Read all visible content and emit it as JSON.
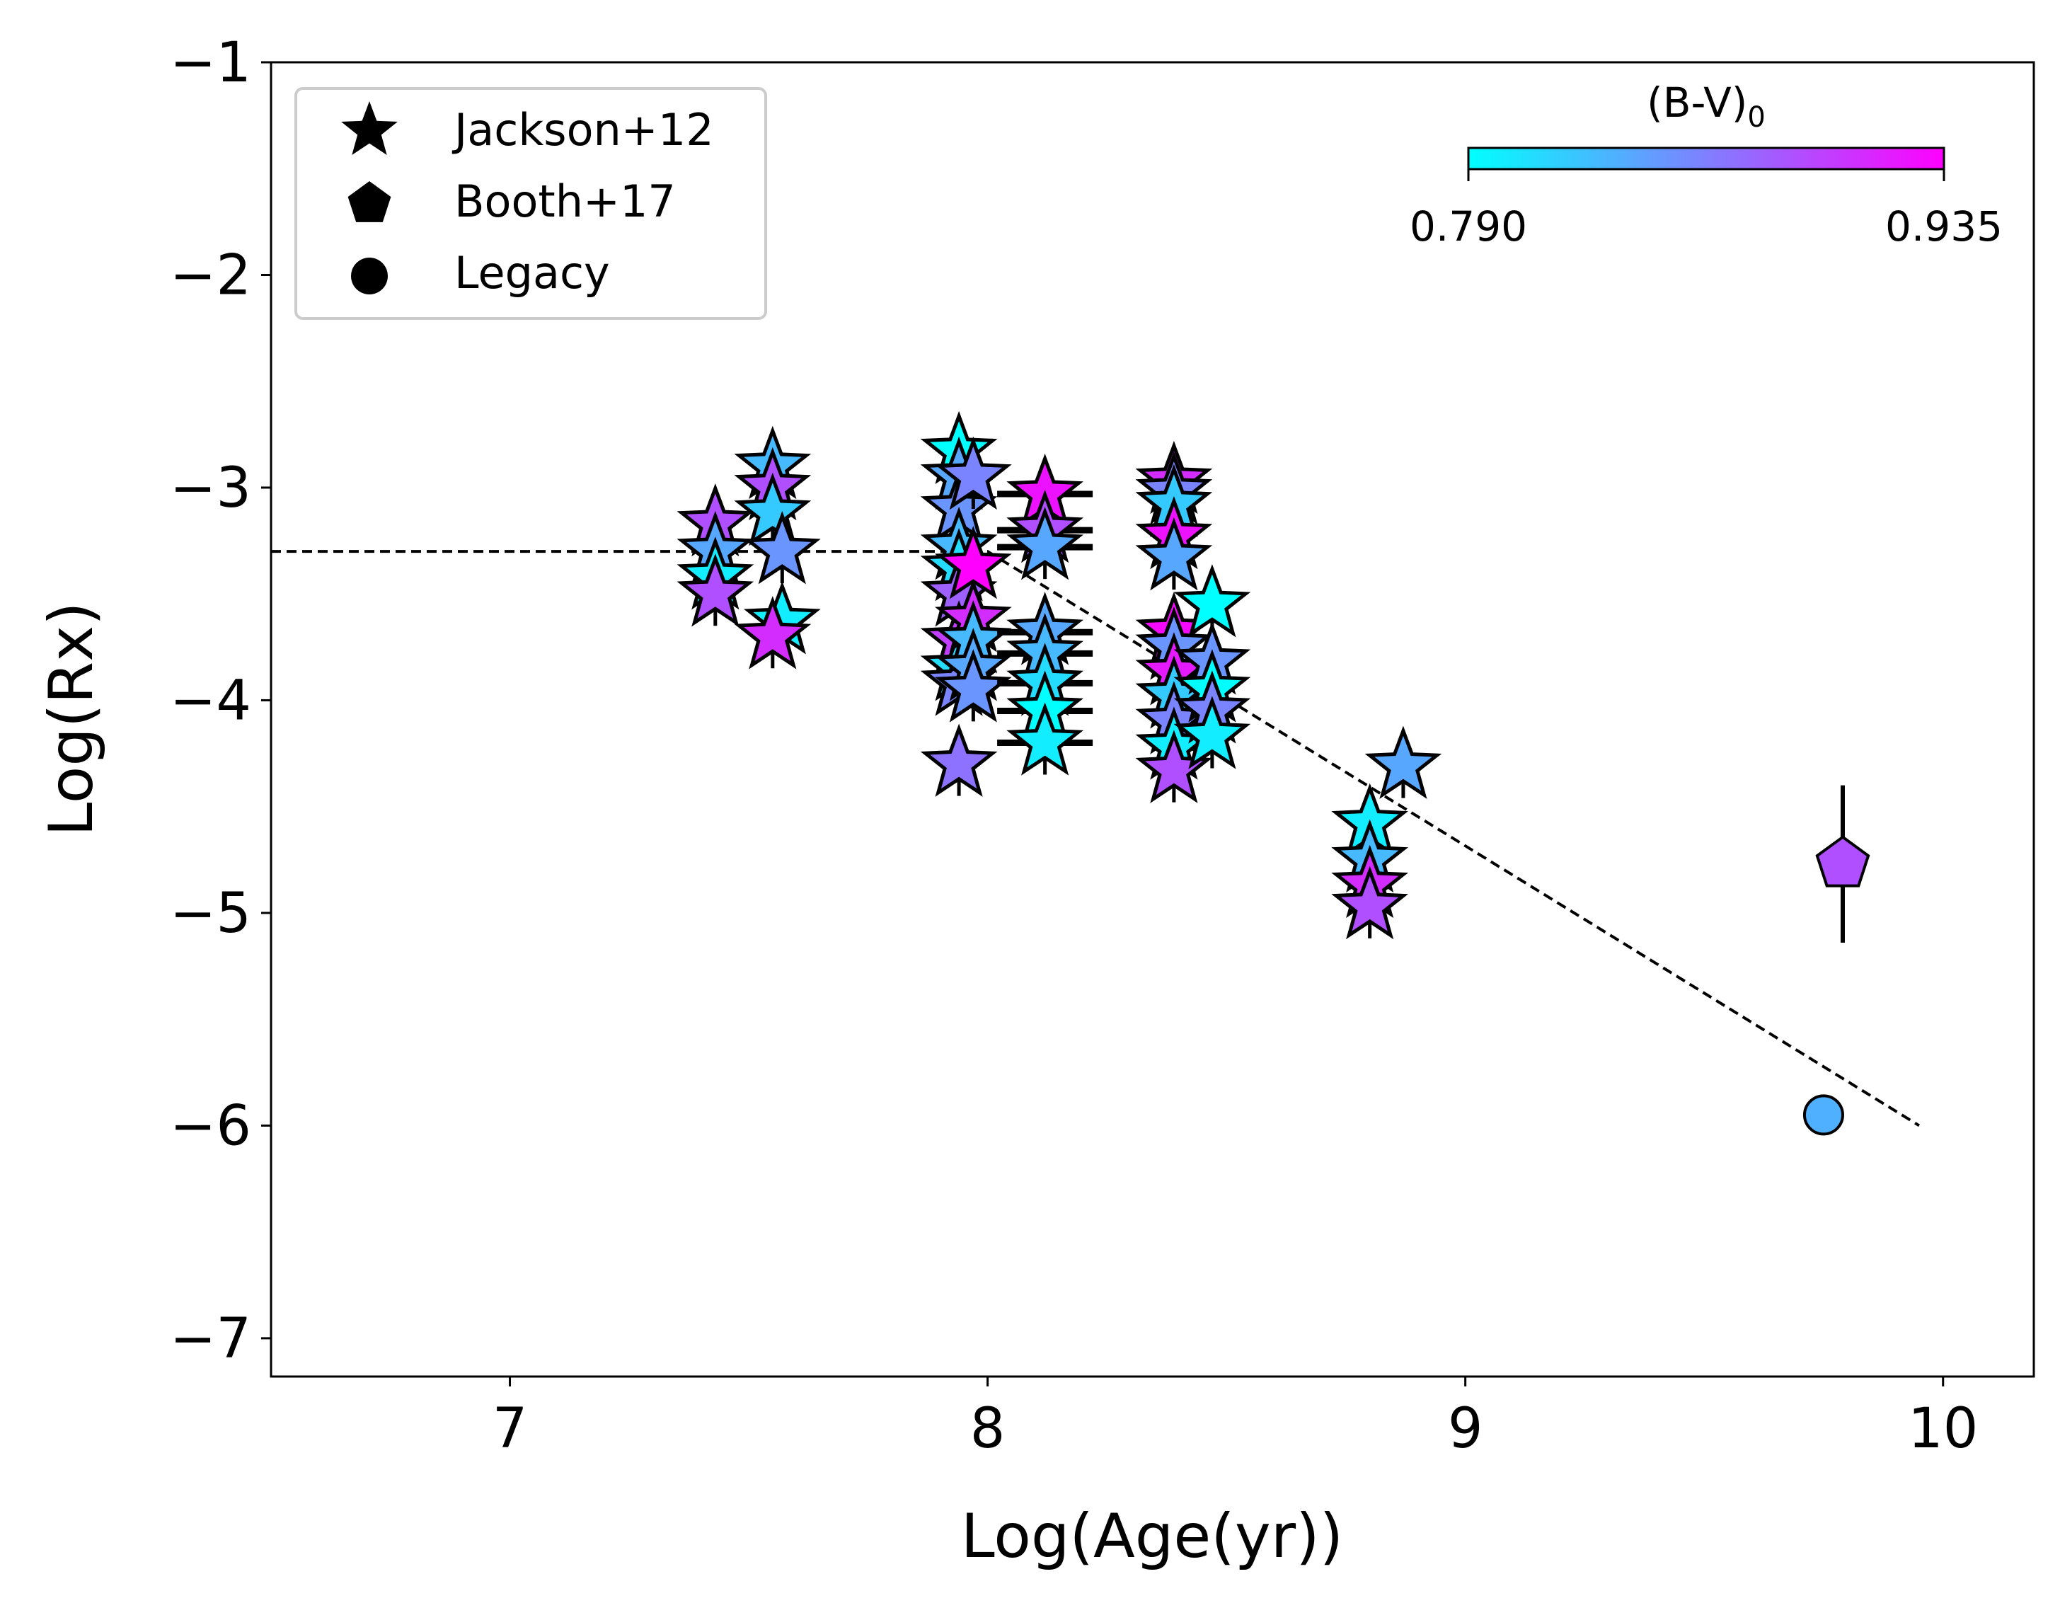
{
  "chart_data": {
    "type": "scatter",
    "xlabel": "Log(Age(yr))",
    "ylabel": "Log(Rx)",
    "xlim": [
      6.5,
      10.19
    ],
    "ylim": [
      -7.18,
      -1
    ],
    "xticks": [
      7,
      8,
      9,
      10
    ],
    "yticks": [
      -1,
      -2,
      -3,
      -4,
      -5,
      -6,
      -7
    ],
    "grid": false,
    "legend": {
      "placement": "top-left",
      "entries": [
        {
          "label": "Jackson+12",
          "marker": "star"
        },
        {
          "label": "Booth+17",
          "marker": "pentagon"
        },
        {
          "label": "Legacy",
          "marker": "circle"
        }
      ]
    },
    "colorbar": {
      "label": "(B-V)",
      "label_subscript": "0",
      "colormap": "cool",
      "min": 0.79,
      "max": 0.935,
      "min_label": "0.790",
      "max_label": "0.935",
      "placement": "top-right",
      "color_min": "#00ffff",
      "color_max": "#ff00ff"
    },
    "series": [
      {
        "name": "Jackson+12",
        "marker": "star",
        "points": [
          {
            "x": 7.43,
            "y": -3.17,
            "c": 0.89
          },
          {
            "x": 7.43,
            "y": -3.3,
            "c": 0.84
          },
          {
            "x": 7.43,
            "y": -3.42,
            "c": 0.8
          },
          {
            "x": 7.43,
            "y": -3.5,
            "c": 0.89
          },
          {
            "x": 7.55,
            "y": -2.9,
            "c": 0.83
          },
          {
            "x": 7.55,
            "y": -3.0,
            "c": 0.89
          },
          {
            "x": 7.55,
            "y": -3.12,
            "c": 0.82
          },
          {
            "x": 7.57,
            "y": -3.3,
            "c": 0.85
          },
          {
            "x": 7.57,
            "y": -3.63,
            "c": 0.8
          },
          {
            "x": 7.55,
            "y": -3.7,
            "c": 0.91
          },
          {
            "x": 7.94,
            "y": -2.83,
            "c": 0.79
          },
          {
            "x": 7.94,
            "y": -2.95,
            "c": 0.84
          },
          {
            "x": 7.94,
            "y": -3.1,
            "c": 0.85
          },
          {
            "x": 7.94,
            "y": -3.28,
            "c": 0.83
          },
          {
            "x": 7.94,
            "y": -3.38,
            "c": 0.81
          },
          {
            "x": 7.94,
            "y": -3.5,
            "c": 0.88
          },
          {
            "x": 7.94,
            "y": -3.72,
            "c": 0.9
          },
          {
            "x": 7.94,
            "y": -3.85,
            "c": 0.81
          },
          {
            "x": 7.94,
            "y": -3.92,
            "c": 0.86
          },
          {
            "x": 7.94,
            "y": -4.3,
            "c": 0.87
          },
          {
            "x": 7.97,
            "y": -2.95,
            "c": 0.86
          },
          {
            "x": 7.97,
            "y": -3.37,
            "c": 0.935
          },
          {
            "x": 7.97,
            "y": -3.62,
            "c": 0.91
          },
          {
            "x": 7.97,
            "y": -3.72,
            "c": 0.83
          },
          {
            "x": 7.97,
            "y": -3.85,
            "c": 0.84
          },
          {
            "x": 7.97,
            "y": -3.95,
            "c": 0.85
          },
          {
            "x": 8.12,
            "y": -3.03,
            "c": 0.925,
            "xerr": 0.1
          },
          {
            "x": 8.12,
            "y": -3.2,
            "c": 0.89,
            "xerr": 0.1
          },
          {
            "x": 8.12,
            "y": -3.28,
            "c": 0.84,
            "xerr": 0.1
          },
          {
            "x": 8.12,
            "y": -3.68,
            "c": 0.84,
            "xerr": 0.1
          },
          {
            "x": 8.12,
            "y": -3.78,
            "c": 0.83,
            "xerr": 0.1
          },
          {
            "x": 8.12,
            "y": -3.92,
            "c": 0.81,
            "xerr": 0.1
          },
          {
            "x": 8.12,
            "y": -4.05,
            "c": 0.79,
            "xerr": 0.1
          },
          {
            "x": 8.12,
            "y": -4.2,
            "c": 0.8,
            "xerr": 0.1
          },
          {
            "x": 8.39,
            "y": -2.97,
            "c": 0.91
          },
          {
            "x": 8.39,
            "y": -3.02,
            "c": 0.86
          },
          {
            "x": 8.39,
            "y": -3.08,
            "c": 0.82
          },
          {
            "x": 8.39,
            "y": -3.23,
            "c": 0.925
          },
          {
            "x": 8.39,
            "y": -3.33,
            "c": 0.84
          },
          {
            "x": 8.39,
            "y": -3.68,
            "c": 0.93
          },
          {
            "x": 8.39,
            "y": -3.75,
            "c": 0.85
          },
          {
            "x": 8.39,
            "y": -3.87,
            "c": 0.92
          },
          {
            "x": 8.39,
            "y": -3.98,
            "c": 0.82
          },
          {
            "x": 8.39,
            "y": -4.1,
            "c": 0.86
          },
          {
            "x": 8.39,
            "y": -4.22,
            "c": 0.8
          },
          {
            "x": 8.39,
            "y": -4.33,
            "c": 0.89
          },
          {
            "x": 8.47,
            "y": -3.55,
            "c": 0.79
          },
          {
            "x": 8.47,
            "y": -3.82,
            "c": 0.85
          },
          {
            "x": 8.47,
            "y": -3.95,
            "c": 0.79
          },
          {
            "x": 8.47,
            "y": -4.05,
            "c": 0.86
          },
          {
            "x": 8.47,
            "y": -4.17,
            "c": 0.8
          },
          {
            "x": 8.8,
            "y": -4.58,
            "c": 0.8,
            "xerr": 0.03
          },
          {
            "x": 8.8,
            "y": -4.75,
            "c": 0.83,
            "xerr": 0.03
          },
          {
            "x": 8.8,
            "y": -4.87,
            "c": 0.91
          },
          {
            "x": 8.8,
            "y": -4.97,
            "c": 0.89
          },
          {
            "x": 8.87,
            "y": -4.31,
            "c": 0.84,
            "xerr": 0.03
          }
        ]
      },
      {
        "name": "Booth+17",
        "marker": "pentagon",
        "points": [
          {
            "x": 9.79,
            "y": -4.77,
            "c": 0.89,
            "yerr": 0.37
          }
        ]
      },
      {
        "name": "Legacy",
        "marker": "circle",
        "points": [
          {
            "x": 9.75,
            "y": -5.95,
            "c": 0.835
          }
        ]
      }
    ],
    "trend_line": {
      "style": "dashed",
      "points": [
        {
          "x": 6.5,
          "y": -3.3
        },
        {
          "x": 8.0,
          "y": -3.3
        },
        {
          "x": 9.95,
          "y": -6.0
        }
      ]
    }
  }
}
